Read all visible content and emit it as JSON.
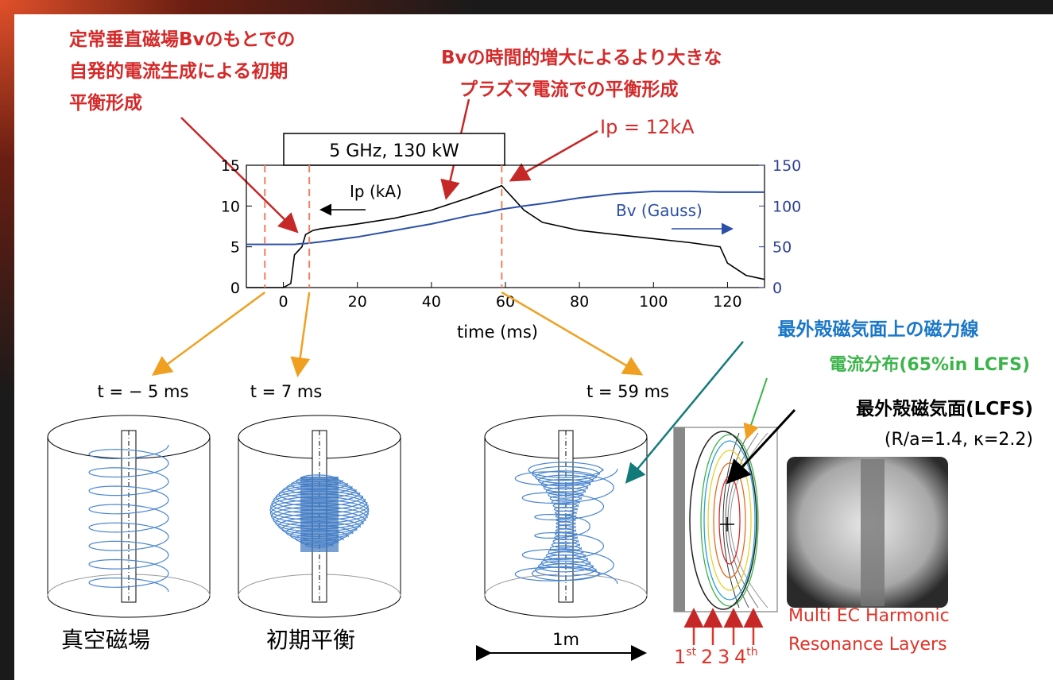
{
  "chart_data": {
    "type": "line",
    "xlabel": "time (ms)",
    "box_label": "5 GHz, 130 kW",
    "x": [
      -10,
      -5,
      0,
      2,
      3,
      5,
      6,
      8,
      10,
      20,
      30,
      40,
      50,
      55,
      59,
      62,
      65,
      70,
      80,
      90,
      100,
      110,
      118,
      120,
      125,
      130
    ],
    "series": [
      {
        "name": "Ip (kA)",
        "color": "#000000",
        "values": [
          0,
          0,
          0,
          0.5,
          4,
          5,
          6.5,
          7,
          7.2,
          7.8,
          8.5,
          9.5,
          11,
          11.8,
          12.5,
          11,
          9.5,
          8,
          7,
          6.5,
          6,
          5.5,
          5,
          3,
          1.5,
          1
        ]
      },
      {
        "name": "Bv (Gauss)",
        "color": "#2b4fa8",
        "axis": "y2",
        "values": [
          53,
          53,
          53,
          53,
          53,
          54,
          54,
          55,
          56,
          62,
          70,
          78,
          88,
          92,
          96,
          98,
          100,
          103,
          110,
          115,
          118,
          118,
          117,
          117,
          117,
          117
        ]
      }
    ],
    "xlim": [
      -10,
      130
    ],
    "xticks": [
      0,
      20,
      40,
      60,
      80,
      100,
      120
    ],
    "ylim": [
      0,
      15
    ],
    "yticks": [
      0,
      5,
      10,
      15
    ],
    "y2lim": [
      0,
      150
    ],
    "y2ticks": [
      0,
      50,
      100,
      150
    ],
    "time_markers": [
      {
        "value": -5,
        "label": "t = − 5 ms"
      },
      {
        "value": 7,
        "label": "t = 7 ms"
      },
      {
        "value": 59,
        "label": "t = 59 ms"
      }
    ]
  },
  "annotations": {
    "initial_note": [
      "定常垂直磁場Bvのもとでの",
      "自発的電流生成による初期",
      "平衡形成"
    ],
    "growth_note": [
      "Bvの時間的増大によるより大きな",
      "プラズマ電流での平衡形成"
    ],
    "peak_note": "Ip = 12kA"
  },
  "diagrams": {
    "vacuum_label": "真空磁場",
    "initial_label": "初期平衡",
    "scale_label": "1m",
    "field_line_label": "最外殻磁気面上の磁力線",
    "current_label": "電流分布(65%in LCFS)",
    "lcfs_label": "最外殻磁気面(LCFS)",
    "lcfs_params": "(R/a=1.4, κ=2.2)",
    "harmonics": [
      {
        "n": "1",
        "sup": "st"
      },
      {
        "n": "2"
      },
      {
        "n": "3"
      },
      {
        "n": "4",
        "sup": "th"
      }
    ],
    "resonance_label": [
      "Multi EC Harmonic",
      "Resonance Layers"
    ]
  }
}
